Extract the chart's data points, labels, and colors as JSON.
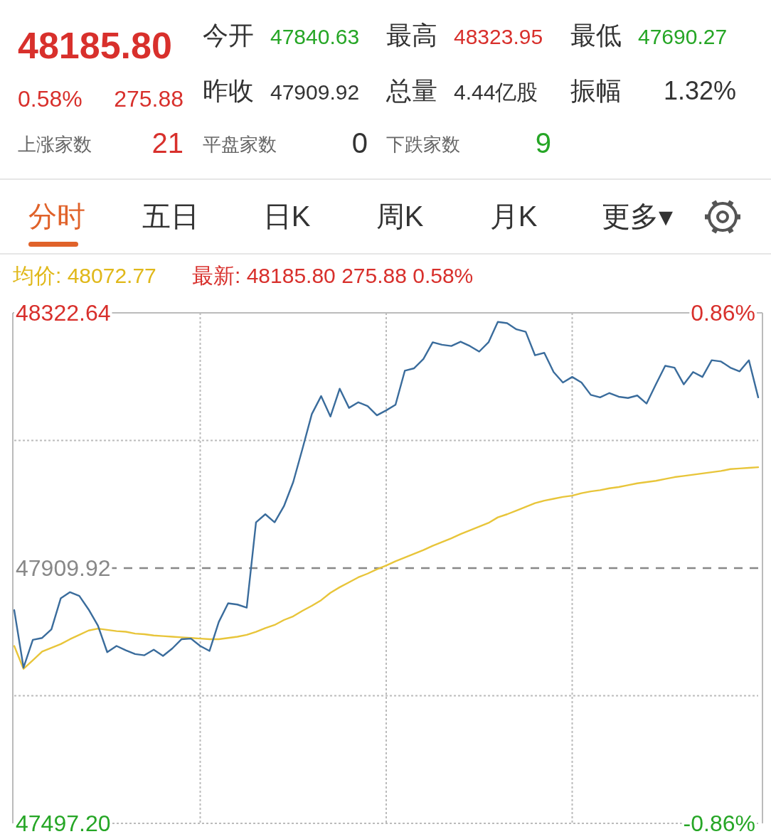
{
  "chart_data": {
    "type": "line",
    "annotations": [
      "48185.80",
      "0.58%",
      "275.88",
      "今开",
      "47840.63",
      "最高",
      "48323.95",
      "最低",
      "47690.27",
      "昨收",
      "47909.92",
      "总量",
      "4.44亿股",
      "振幅",
      "1.32%",
      "上涨家数",
      "21",
      "平盘家数",
      "0",
      "下跌家数",
      "9",
      "分时",
      "五日",
      "日K",
      "周K",
      "月K",
      "更多▾",
      "均价: 48072.77",
      "最新: 48185.80 275.88 0.58%"
    ],
    "categories": [
      null,
      null,
      null,
      null,
      null,
      null,
      null,
      null,
      null,
      null,
      null,
      null,
      null,
      null,
      null,
      null,
      null,
      null,
      null,
      null,
      null,
      null,
      null,
      null,
      null,
      null,
      null,
      null,
      null,
      null,
      null,
      null,
      null,
      null,
      null,
      null,
      null,
      null,
      null,
      null,
      null,
      null,
      null,
      null,
      null,
      null,
      null,
      null,
      null,
      null,
      null,
      null,
      null,
      null,
      null,
      null,
      null,
      null,
      null,
      null,
      null,
      null,
      null,
      null,
      null,
      null,
      null,
      null,
      null,
      null,
      null,
      null,
      null,
      null,
      null,
      null,
      null,
      null,
      null,
      null,
      null
    ],
    "series": [
      {
        "color": "#3a6c9c",
        "values": [
          47842,
          47749,
          47794,
          47797,
          47811,
          47861,
          47871,
          47865,
          47843,
          47817,
          47774,
          47784,
          47777,
          47771,
          47769,
          47778,
          47768,
          47780,
          47795,
          47796,
          47784,
          47776,
          47823,
          47853,
          47851,
          47846,
          47984,
          47997,
          47984,
          48010,
          48049,
          48103,
          48159,
          48188,
          48155,
          48200,
          48169,
          48178,
          48172,
          48157,
          48165,
          48174,
          48229,
          48233,
          48248,
          48275,
          48271,
          48269,
          48276,
          48269,
          48260,
          48275,
          48308,
          48306,
          48296,
          48292,
          48254,
          48258,
          48227,
          48210,
          48219,
          48210,
          48190,
          48186,
          48193,
          48187,
          48185,
          48189,
          48176,
          48207,
          48237,
          48234,
          48207,
          48227,
          48219,
          48246,
          48244,
          48234,
          48228,
          48246,
          48186
        ]
      },
      {
        "color": "#e8c53a",
        "values": [
          47784,
          47747,
          47761,
          47775,
          47781,
          47787,
          47795,
          47802,
          47809,
          47812,
          47810,
          47808,
          47807,
          47804,
          47803,
          47801,
          47800,
          47799,
          47798,
          47797,
          47796,
          47795,
          47795,
          47797,
          47799,
          47802,
          47807,
          47813,
          47818,
          47826,
          47832,
          47841,
          47849,
          47858,
          47870,
          47879,
          47887,
          47895,
          47901,
          47908,
          47914,
          47921,
          47927,
          47933,
          47939,
          47946,
          47952,
          47958,
          47965,
          47971,
          47977,
          47983,
          47992,
          47997,
          48003,
          48009,
          48015,
          48019,
          48022,
          48025,
          48027,
          48031,
          48034,
          48036,
          48039,
          48041,
          48044,
          48047,
          48049,
          48051,
          48054,
          48057,
          48059,
          48061,
          48063,
          48065,
          48067,
          48070,
          48071,
          48072,
          48073
        ]
      }
    ],
    "ylim": [
      47497.2,
      48322.64
    ],
    "yticks": [
      {
        "value": 48322.64,
        "label": "48322.64"
      },
      {
        "value": 48116.28,
        "label": null
      },
      {
        "value": 47909.92,
        "label": "47909.92"
      },
      {
        "value": 47703.56,
        "label": null
      },
      {
        "value": 47497.2,
        "label": "47497.20"
      }
    ],
    "y2lim": [
      -0.86,
      0.86
    ],
    "y2ticks": [
      {
        "value": 0.86,
        "label": "0.86%"
      },
      {
        "value": -0.86,
        "label": "-0.86%"
      }
    ],
    "ref_lines": [
      {
        "axis": "y",
        "value": 47909.92,
        "color": "#888888",
        "line_style": "dashed"
      }
    ],
    "grid": true
  }
}
